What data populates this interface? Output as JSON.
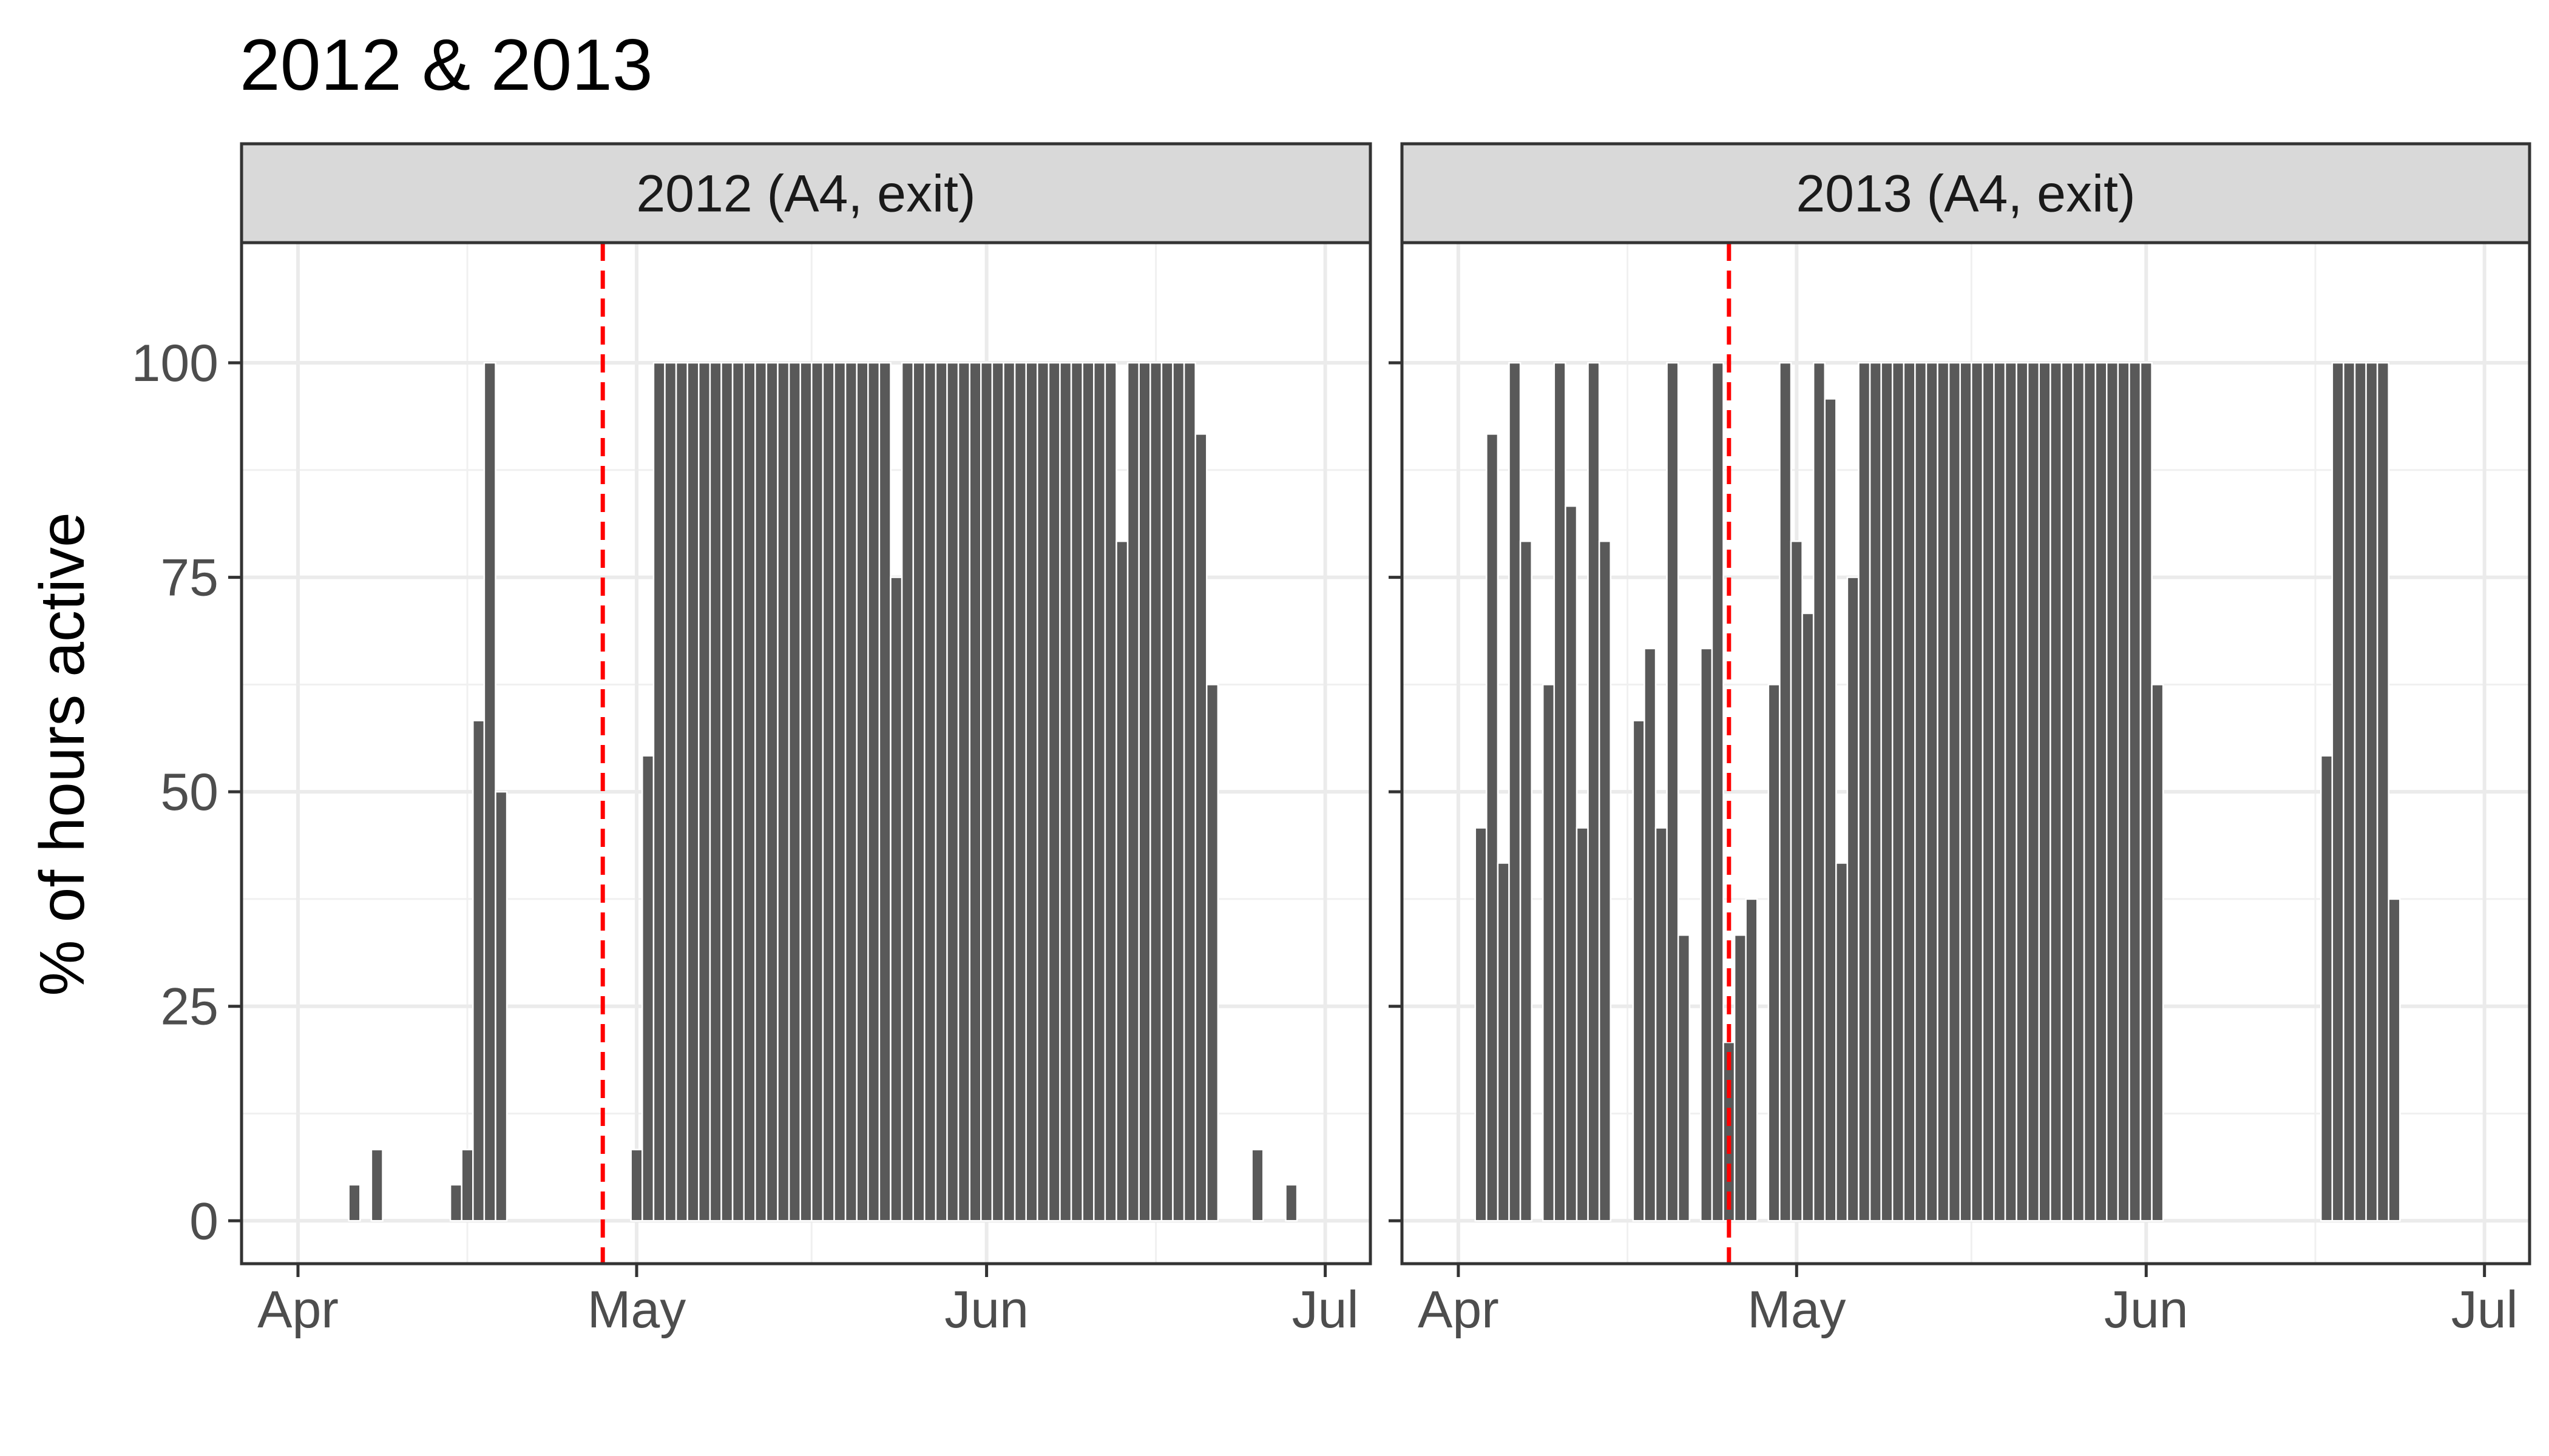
{
  "chart_data": {
    "type": "bar",
    "title": "2012 & 2013",
    "xlabel": "",
    "ylabel": "% of hours active",
    "ylim": [
      -5,
      114
    ],
    "yticks": [
      0,
      25,
      50,
      75,
      100
    ],
    "xticks": [
      {
        "date": "2000-04-01",
        "label": "Apr"
      },
      {
        "date": "2000-05-01",
        "label": "May"
      },
      {
        "date": "2000-06-01",
        "label": "Jun"
      },
      {
        "date": "2000-07-01",
        "label": "Jul"
      }
    ],
    "xlim": [
      "2000-03-27",
      "2000-07-05"
    ],
    "grid": true,
    "bar_color": "#595959",
    "vline_color": "#ff0000",
    "panels": [
      {
        "strip": "2012 (A4, exit)",
        "vline_date": "2000-04-28",
        "bars": [
          {
            "date": "2000-04-06",
            "value": 4.2
          },
          {
            "date": "2000-04-08",
            "value": 8.3
          },
          {
            "date": "2000-04-15",
            "value": 4.2
          },
          {
            "date": "2000-04-16",
            "value": 8.3
          },
          {
            "date": "2000-04-17",
            "value": 58.3
          },
          {
            "date": "2000-04-18",
            "value": 100
          },
          {
            "date": "2000-04-19",
            "value": 50
          },
          {
            "date": "2000-05-01",
            "value": 8.3
          },
          {
            "date": "2000-05-02",
            "value": 54.2
          },
          {
            "date": "2000-05-03",
            "value": 100
          },
          {
            "date": "2000-05-04",
            "value": 100
          },
          {
            "date": "2000-05-05",
            "value": 100
          },
          {
            "date": "2000-05-06",
            "value": 100
          },
          {
            "date": "2000-05-07",
            "value": 100
          },
          {
            "date": "2000-05-08",
            "value": 100
          },
          {
            "date": "2000-05-09",
            "value": 100
          },
          {
            "date": "2000-05-10",
            "value": 100
          },
          {
            "date": "2000-05-11",
            "value": 100
          },
          {
            "date": "2000-05-12",
            "value": 100
          },
          {
            "date": "2000-05-13",
            "value": 100
          },
          {
            "date": "2000-05-14",
            "value": 100
          },
          {
            "date": "2000-05-15",
            "value": 100
          },
          {
            "date": "2000-05-16",
            "value": 100
          },
          {
            "date": "2000-05-17",
            "value": 100
          },
          {
            "date": "2000-05-18",
            "value": 100
          },
          {
            "date": "2000-05-19",
            "value": 100
          },
          {
            "date": "2000-05-20",
            "value": 100
          },
          {
            "date": "2000-05-21",
            "value": 100
          },
          {
            "date": "2000-05-22",
            "value": 100
          },
          {
            "date": "2000-05-23",
            "value": 100
          },
          {
            "date": "2000-05-24",
            "value": 75
          },
          {
            "date": "2000-05-25",
            "value": 100
          },
          {
            "date": "2000-05-26",
            "value": 100
          },
          {
            "date": "2000-05-27",
            "value": 100
          },
          {
            "date": "2000-05-28",
            "value": 100
          },
          {
            "date": "2000-05-29",
            "value": 100
          },
          {
            "date": "2000-05-30",
            "value": 100
          },
          {
            "date": "2000-05-31",
            "value": 100
          },
          {
            "date": "2000-06-01",
            "value": 100
          },
          {
            "date": "2000-06-02",
            "value": 100
          },
          {
            "date": "2000-06-03",
            "value": 100
          },
          {
            "date": "2000-06-04",
            "value": 100
          },
          {
            "date": "2000-06-05",
            "value": 100
          },
          {
            "date": "2000-06-06",
            "value": 100
          },
          {
            "date": "2000-06-07",
            "value": 100
          },
          {
            "date": "2000-06-08",
            "value": 100
          },
          {
            "date": "2000-06-09",
            "value": 100
          },
          {
            "date": "2000-06-10",
            "value": 100
          },
          {
            "date": "2000-06-11",
            "value": 100
          },
          {
            "date": "2000-06-12",
            "value": 100
          },
          {
            "date": "2000-06-13",
            "value": 79.2
          },
          {
            "date": "2000-06-14",
            "value": 100
          },
          {
            "date": "2000-06-15",
            "value": 100
          },
          {
            "date": "2000-06-16",
            "value": 100
          },
          {
            "date": "2000-06-17",
            "value": 100
          },
          {
            "date": "2000-06-18",
            "value": 100
          },
          {
            "date": "2000-06-19",
            "value": 100
          },
          {
            "date": "2000-06-20",
            "value": 91.7
          },
          {
            "date": "2000-06-21",
            "value": 62.5
          },
          {
            "date": "2000-06-25",
            "value": 8.3
          },
          {
            "date": "2000-06-28",
            "value": 4.2
          }
        ]
      },
      {
        "strip": "2013 (A4, exit)",
        "vline_date": "2000-04-25",
        "bars": [
          {
            "date": "2000-04-03",
            "value": 45.8
          },
          {
            "date": "2000-04-04",
            "value": 91.7
          },
          {
            "date": "2000-04-05",
            "value": 41.7
          },
          {
            "date": "2000-04-06",
            "value": 100
          },
          {
            "date": "2000-04-07",
            "value": 79.2
          },
          {
            "date": "2000-04-09",
            "value": 62.5
          },
          {
            "date": "2000-04-10",
            "value": 100
          },
          {
            "date": "2000-04-11",
            "value": 83.3
          },
          {
            "date": "2000-04-12",
            "value": 45.8
          },
          {
            "date": "2000-04-13",
            "value": 100
          },
          {
            "date": "2000-04-14",
            "value": 79.2
          },
          {
            "date": "2000-04-17",
            "value": 58.3
          },
          {
            "date": "2000-04-18",
            "value": 66.7
          },
          {
            "date": "2000-04-19",
            "value": 45.8
          },
          {
            "date": "2000-04-20",
            "value": 100
          },
          {
            "date": "2000-04-21",
            "value": 33.3
          },
          {
            "date": "2000-04-23",
            "value": 66.7
          },
          {
            "date": "2000-04-24",
            "value": 100
          },
          {
            "date": "2000-04-25",
            "value": 20.8
          },
          {
            "date": "2000-04-26",
            "value": 33.3
          },
          {
            "date": "2000-04-27",
            "value": 37.5
          },
          {
            "date": "2000-04-29",
            "value": 62.5
          },
          {
            "date": "2000-04-30",
            "value": 100
          },
          {
            "date": "2000-05-01",
            "value": 79.2
          },
          {
            "date": "2000-05-02",
            "value": 70.8
          },
          {
            "date": "2000-05-03",
            "value": 100
          },
          {
            "date": "2000-05-04",
            "value": 95.8
          },
          {
            "date": "2000-05-05",
            "value": 41.7
          },
          {
            "date": "2000-05-06",
            "value": 75
          },
          {
            "date": "2000-05-07",
            "value": 100
          },
          {
            "date": "2000-05-08",
            "value": 100
          },
          {
            "date": "2000-05-09",
            "value": 100
          },
          {
            "date": "2000-05-10",
            "value": 100
          },
          {
            "date": "2000-05-11",
            "value": 100
          },
          {
            "date": "2000-05-12",
            "value": 100
          },
          {
            "date": "2000-05-13",
            "value": 100
          },
          {
            "date": "2000-05-14",
            "value": 100
          },
          {
            "date": "2000-05-15",
            "value": 100
          },
          {
            "date": "2000-05-16",
            "value": 100
          },
          {
            "date": "2000-05-17",
            "value": 100
          },
          {
            "date": "2000-05-18",
            "value": 100
          },
          {
            "date": "2000-05-19",
            "value": 100
          },
          {
            "date": "2000-05-20",
            "value": 100
          },
          {
            "date": "2000-05-21",
            "value": 100
          },
          {
            "date": "2000-05-22",
            "value": 100
          },
          {
            "date": "2000-05-23",
            "value": 100
          },
          {
            "date": "2000-05-24",
            "value": 100
          },
          {
            "date": "2000-05-25",
            "value": 100
          },
          {
            "date": "2000-05-26",
            "value": 100
          },
          {
            "date": "2000-05-27",
            "value": 100
          },
          {
            "date": "2000-05-28",
            "value": 100
          },
          {
            "date": "2000-05-29",
            "value": 100
          },
          {
            "date": "2000-05-30",
            "value": 100
          },
          {
            "date": "2000-05-31",
            "value": 100
          },
          {
            "date": "2000-06-01",
            "value": 100
          },
          {
            "date": "2000-06-02",
            "value": 62.5
          },
          {
            "date": "2000-06-17",
            "value": 54.2
          },
          {
            "date": "2000-06-18",
            "value": 100
          },
          {
            "date": "2000-06-19",
            "value": 100
          },
          {
            "date": "2000-06-20",
            "value": 100
          },
          {
            "date": "2000-06-21",
            "value": 100
          },
          {
            "date": "2000-06-22",
            "value": 100
          },
          {
            "date": "2000-06-23",
            "value": 37.5
          }
        ]
      }
    ]
  }
}
